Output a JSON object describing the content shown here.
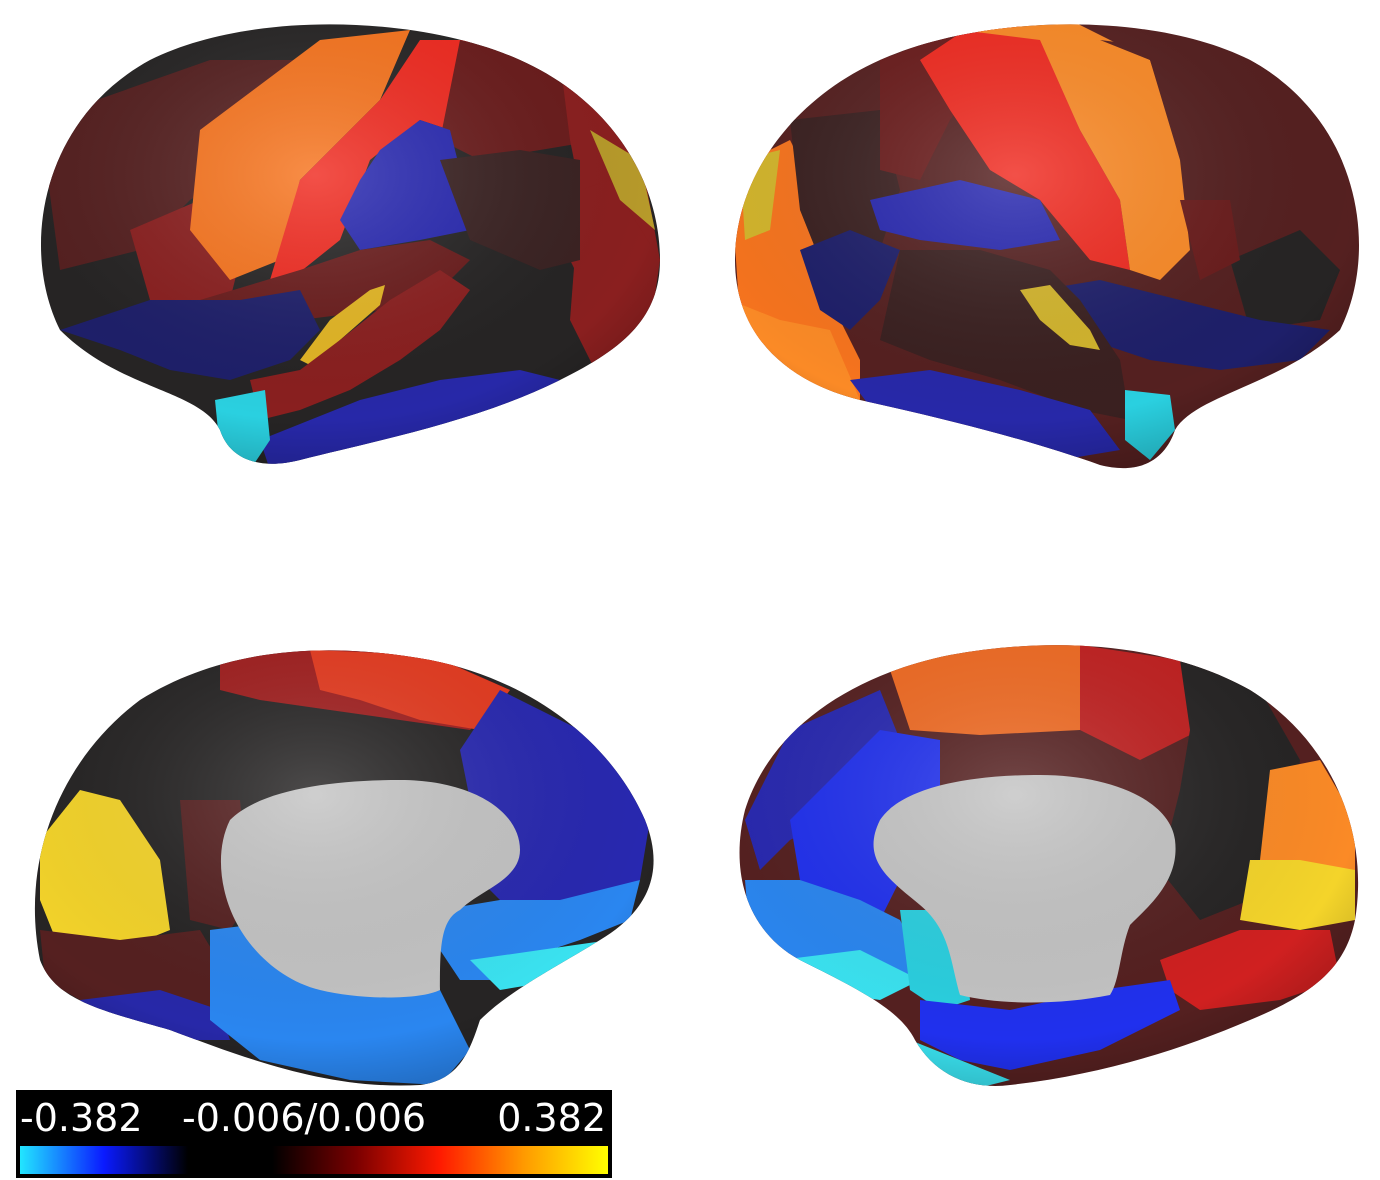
{
  "colorbar": {
    "min_label": "-0.382",
    "mid_label": "-0.006/0.006",
    "max_label": "0.382",
    "stops": [
      "#22e6ff",
      "#0a1aff",
      "#000000",
      "#000000",
      "#7a0000",
      "#ff1a00",
      "#ff9a00",
      "#ffff00"
    ]
  },
  "palette": {
    "dark": "#262424",
    "darkbrown": "#552020",
    "brown": "#6a1c1c",
    "darkred": "#8a1f1f",
    "red": "#f02a20",
    "orange": "#f7741e",
    "lightorange": "#fb8a26",
    "yellow": "#f4cc28",
    "navy": "#1e1f6a",
    "blue": "#2828b0",
    "brightblue": "#2030ee",
    "skyblue": "#2a86f0",
    "cyan": "#2ae8f0",
    "gray": "#c4c4c4"
  }
}
